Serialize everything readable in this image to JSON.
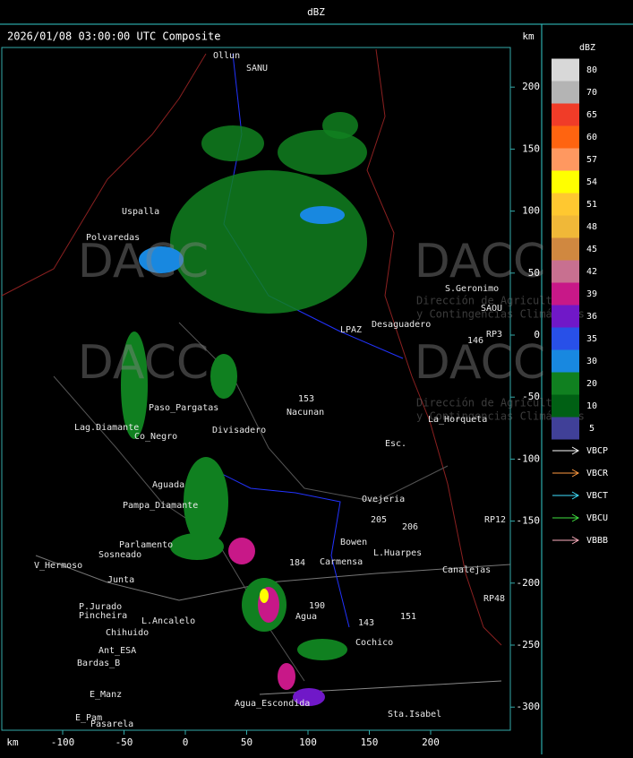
{
  "header": {
    "title": "dBZ"
  },
  "map": {
    "title": "2026/01/08 03:00:00 UTC Composite",
    "unit_top": "km",
    "unit_bottom": "km",
    "x_ticks": [
      -100,
      -50,
      0,
      50,
      100,
      150,
      200
    ],
    "y_ticks": [
      200,
      150,
      100,
      50,
      0,
      -50,
      -100,
      -150,
      -200,
      -250,
      -300
    ],
    "watermark": {
      "logo": "DACC",
      "line1": "Dirección de Agricultura",
      "line2": "y Contingencias Climáticas"
    },
    "places": [
      "Ollun",
      "SANU",
      "Uspalla",
      "Polvaredas",
      "Desaguadero",
      "S.Geronimo",
      "SAOU",
      "LPAZ",
      "Nacunan",
      "Lag.Diamante",
      "Paso_Pargatas",
      "Co_Negro",
      "Divisadero",
      "La_Horqueta",
      "Esc.",
      "Aguada",
      "Pampa_Diamante",
      "Parlamento",
      "Sosneado",
      "V_Hermoso",
      "Junta",
      "Ovejeria",
      "Bowen",
      "Carmensa",
      "L.Huarpes",
      "Canalejas",
      "P.Jurado",
      "Pincheira",
      "L.Ancalelo",
      "Chihuido",
      "Agua",
      "Cochico",
      "Ant_ESA",
      "Bardas_B",
      "E_Manz",
      "E_Pam",
      "Pasarela",
      "Agua_Escondida",
      "Sta.Isabel",
      "RP3",
      "RP12",
      "RP48",
      "146",
      "153",
      "184",
      "190",
      "143",
      "151",
      "205",
      "206"
    ]
  },
  "legend": {
    "title": "dBZ",
    "scale": [
      {
        "label": "80",
        "color": "#d8d8d8"
      },
      {
        "label": "70",
        "color": "#b4b4b4"
      },
      {
        "label": "65",
        "color": "#f03c28"
      },
      {
        "label": "60",
        "color": "#ff6410"
      },
      {
        "label": "57",
        "color": "#ff9860"
      },
      {
        "label": "54",
        "color": "#ffff00"
      },
      {
        "label": "51",
        "color": "#ffc830"
      },
      {
        "label": "48",
        "color": "#f0b838"
      },
      {
        "label": "45",
        "color": "#d08840"
      },
      {
        "label": "42",
        "color": "#c87090"
      },
      {
        "label": "39",
        "color": "#c81888"
      },
      {
        "label": "36",
        "color": "#7018c8"
      },
      {
        "label": "35",
        "color": "#2850e8"
      },
      {
        "label": "30",
        "color": "#1888e0"
      },
      {
        "label": "20",
        "color": "#108020"
      },
      {
        "label": "10",
        "color": "#006014"
      },
      {
        "label": "5",
        "color": "#404098"
      }
    ],
    "radars": [
      {
        "name": "VBCP",
        "color": "#ffffff"
      },
      {
        "name": "VBCR",
        "color": "#ff9a40"
      },
      {
        "name": "VBCT",
        "color": "#40e0ff"
      },
      {
        "name": "VBCU",
        "color": "#40e040"
      },
      {
        "name": "VBBB",
        "color": "#ffb0c0"
      }
    ]
  }
}
